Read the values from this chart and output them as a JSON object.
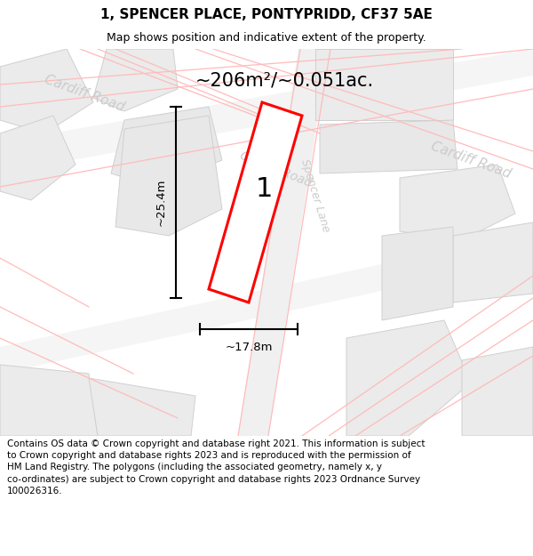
{
  "title": "1, SPENCER PLACE, PONTYPRIDD, CF37 5AE",
  "subtitle": "Map shows position and indicative extent of the property.",
  "area_text": "~206m²/~0.051ac.",
  "label_number": "1",
  "dim_height": "~25.4m",
  "dim_width": "~17.8m",
  "footer": "Contains OS data © Crown copyright and database right 2021. This information is subject\nto Crown copyright and database rights 2023 and is reproduced with the permission of\nHM Land Registry. The polygons (including the associated geometry, namely x, y\nco-ordinates) are subject to Crown copyright and database rights 2023 Ordnance Survey\n100026316.",
  "map_bg": "#ffffff",
  "building_fill": "#eeeeee",
  "building_edge": "#d0d0d0",
  "road_line_color": "#ffbbbb",
  "label_color": "#cccccc",
  "property_color": "#ff0000",
  "dim_color": "#000000",
  "title_color": "#000000",
  "footer_color": "#000000",
  "area_color": "#000000"
}
